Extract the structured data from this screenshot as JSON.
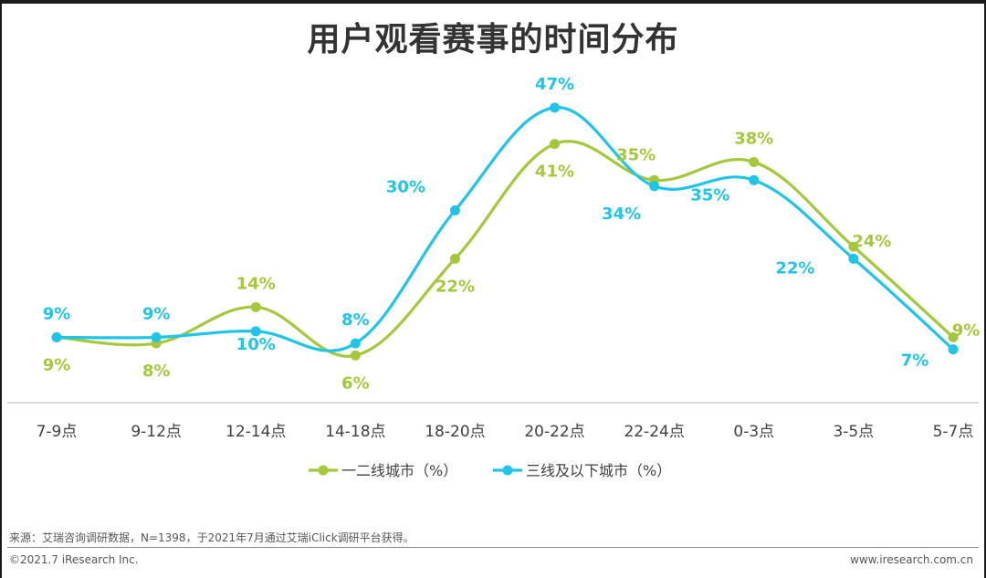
{
  "title": "用户观看赛事的时间分布",
  "chart_data": {
    "type": "line",
    "categories": [
      "7-9点",
      "9-12点",
      "12-14点",
      "14-18点",
      "18-20点",
      "20-22点",
      "22-24点",
      "0-3点",
      "3-5点",
      "5-7点"
    ],
    "series": [
      {
        "name": "一二线城市（%）",
        "color": "#a5c83a",
        "values": [
          9,
          8,
          14,
          6,
          22,
          41,
          35,
          38,
          24,
          9
        ]
      },
      {
        "name": "三线及以下城市（%）",
        "color": "#1fc5e8",
        "values": [
          9,
          9,
          10,
          8,
          30,
          47,
          34,
          35,
          22,
          7
        ]
      }
    ],
    "value_suffix": "%",
    "legend_position": "bottom-center",
    "ylim": [
      0,
      50
    ]
  },
  "footer": {
    "source": "来源：艾瑞咨询调研数据，N=1398，于2021年7月通过艾瑞iClick调研平台获得。",
    "copyright": "©2021.7 iResearch Inc.",
    "website": "www.iresearch.com.cn"
  }
}
